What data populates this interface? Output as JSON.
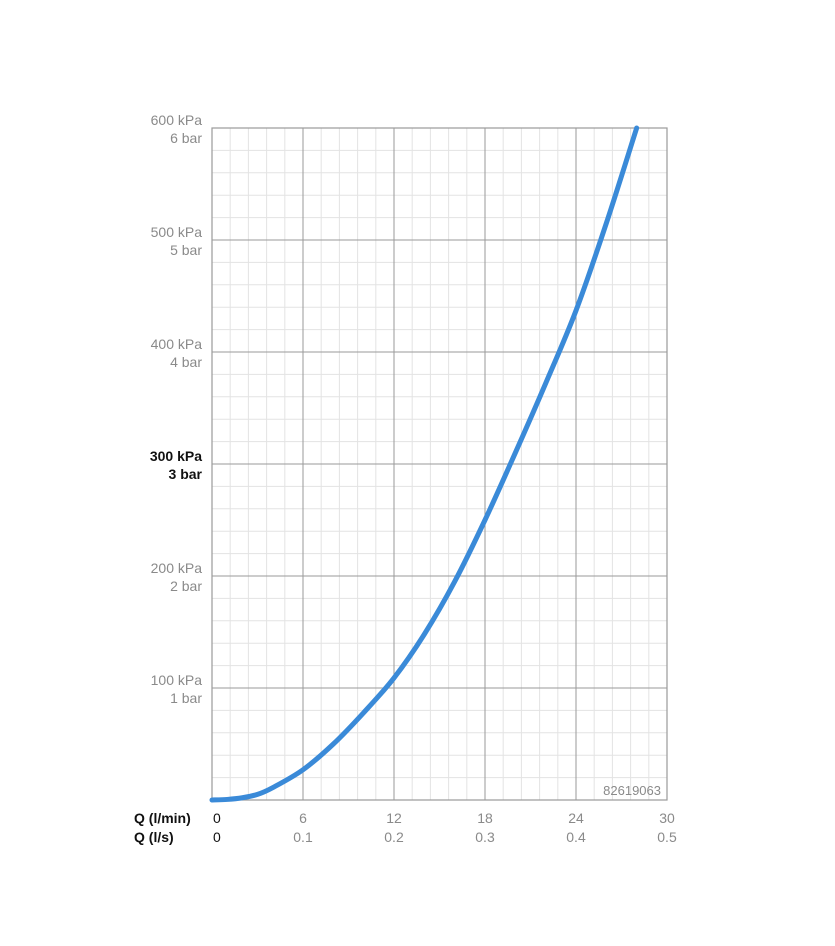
{
  "chart_data": {
    "type": "line",
    "title": "",
    "code_label": "82619063",
    "x_axis": {
      "primary_label": "Q (l/min)",
      "secondary_label": "Q (l/s)",
      "range": [
        0,
        30
      ],
      "ticks": [
        0,
        6,
        12,
        18,
        24,
        30
      ],
      "tick_labels_lmin": [
        "0",
        "6",
        "12",
        "18",
        "24",
        "30"
      ],
      "tick_labels_ls": [
        "0",
        "0.1",
        "0.2",
        "0.3",
        "0.4",
        "0.5"
      ],
      "minor_step": 1.2
    },
    "y_axis": {
      "range": [
        0,
        600
      ],
      "ticks": [
        100,
        200,
        300,
        400,
        500,
        600
      ],
      "tick_labels_kpa": [
        "100 kPa",
        "200 kPa",
        "300 kPa",
        "400 kPa",
        "500 kPa",
        "600 kPa"
      ],
      "tick_labels_bar": [
        "1 bar",
        "2 bar",
        "3 bar",
        "4 bar",
        "5 bar",
        "6 bar"
      ],
      "highlighted_tick": 300,
      "minor_step": 20
    },
    "grid": true,
    "series": [
      {
        "color": "#3a8ad8",
        "x": [
          0,
          1,
          2,
          3,
          4,
          6,
          8,
          10,
          12,
          14,
          16,
          18,
          20,
          22,
          24,
          26,
          28
        ],
        "y": [
          0,
          0.5,
          2,
          5,
          11,
          27,
          50,
          78,
          109,
          148,
          195,
          250,
          310,
          372,
          437,
          515,
          600
        ]
      }
    ]
  }
}
